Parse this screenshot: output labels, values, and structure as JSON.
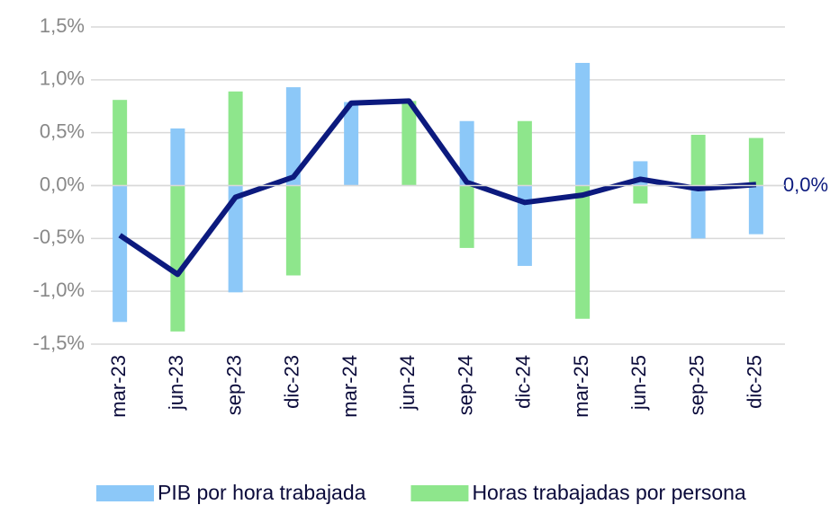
{
  "chart_data": {
    "type": "bar",
    "stacked": true,
    "categories": [
      "mar-23",
      "jun-23",
      "sep-23",
      "dic-23",
      "mar-24",
      "jun-24",
      "sep-24",
      "dic-24",
      "mar-25",
      "jun-25",
      "sep-25",
      "dic-25"
    ],
    "series": [
      {
        "name": "PIB por hora trabajada",
        "type": "bar",
        "color": "#8cc8f8",
        "values": [
          -1.29,
          0.54,
          -1.01,
          0.93,
          0.79,
          0,
          0.61,
          -0.76,
          1.16,
          0.23,
          -0.5,
          -0.46
        ]
      },
      {
        "name": "Horas trabajadas por persona",
        "type": "bar",
        "color": "#8ee68c",
        "values": [
          0.81,
          -1.38,
          0.89,
          -0.85,
          0,
          0.8,
          -0.59,
          0.61,
          -1.26,
          -0.17,
          0.48,
          0.45
        ]
      },
      {
        "type": "line",
        "color": "#0c1a7e",
        "values": [
          -0.47,
          -0.84,
          -0.11,
          0.08,
          0.78,
          0.8,
          0.03,
          -0.16,
          -0.09,
          0.06,
          -0.03,
          0.01
        ],
        "value_labels": [
          null,
          null,
          null,
          null,
          null,
          null,
          null,
          null,
          null,
          null,
          null,
          "0,0%"
        ]
      }
    ],
    "ylim": [
      -1.5,
      1.5
    ],
    "yticks": [
      {
        "value": -1.5,
        "label": "-1,5%"
      },
      {
        "value": -1,
        "label": "-1,0%"
      },
      {
        "value": -0.5,
        "label": "-0,5%"
      },
      {
        "value": 0,
        "label": "0,0%"
      },
      {
        "value": 0.5,
        "label": "0,5%"
      },
      {
        "value": 1,
        "label": "1,0%"
      },
      {
        "value": 1.5,
        "label": "1,5%"
      }
    ],
    "grid": true,
    "legend": "bottom"
  }
}
